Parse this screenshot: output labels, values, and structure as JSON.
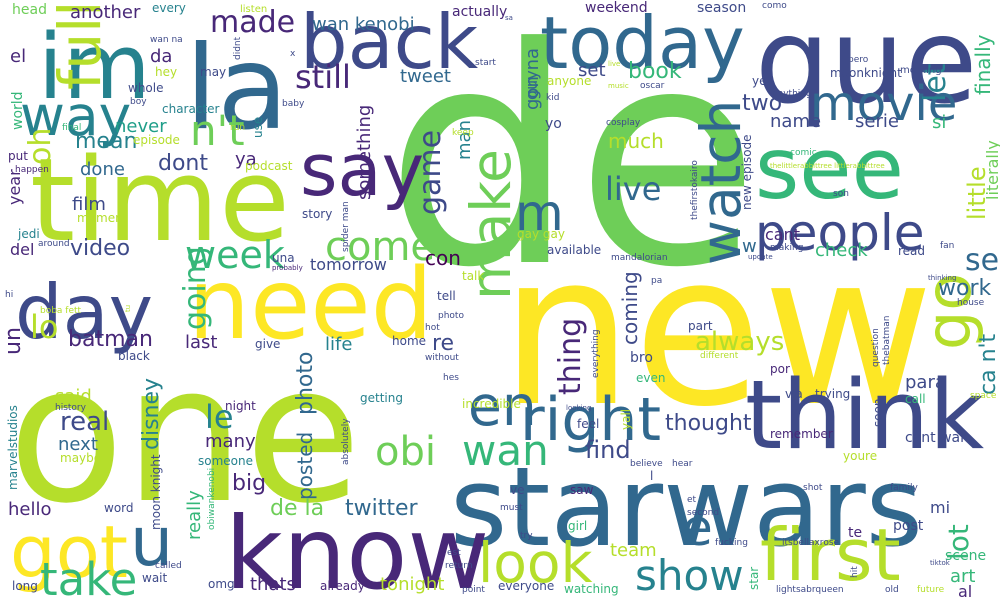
{
  "colors": {
    "background": "#ffffff",
    "palette": [
      "#440154",
      "#482878",
      "#3e4a89",
      "#31688e",
      "#26828e",
      "#1f9e89",
      "#35b779",
      "#6ece58",
      "#b5de2b",
      "#fde725"
    ]
  },
  "words": [
    {
      "text": "de",
      "color": "#6ece58"
    },
    {
      "text": "new",
      "color": "#fde725"
    },
    {
      "text": "one",
      "color": "#b5de2b"
    },
    {
      "text": "que",
      "color": "#3e4a89"
    },
    {
      "text": "la",
      "color": "#31688e"
    },
    {
      "text": "im",
      "color": "#26828e"
    },
    {
      "text": "time",
      "color": "#b5de2b"
    },
    {
      "text": "starwars",
      "color": "#31688e"
    },
    {
      "text": "know",
      "color": "#482878"
    },
    {
      "text": "need",
      "color": "#fde725"
    },
    {
      "text": "think",
      "color": "#3e4a89"
    },
    {
      "text": "back",
      "color": "#3e4a89"
    },
    {
      "text": "today",
      "color": "#31688e"
    },
    {
      "text": "see",
      "color": "#35b779"
    },
    {
      "text": "day",
      "color": "#3e4a89"
    },
    {
      "text": "say",
      "color": "#482878"
    },
    {
      "text": "right",
      "color": "#31688e"
    },
    {
      "text": "first",
      "color": "#b5de2b"
    },
    {
      "text": "got",
      "color": "#fde725"
    },
    {
      "text": "people",
      "color": "#3e4a89"
    },
    {
      "text": "watch",
      "color": "#31688e"
    },
    {
      "text": "movie",
      "color": "#31688e"
    },
    {
      "text": "go",
      "color": "#b5de2b"
    },
    {
      "text": "way",
      "color": "#26828e"
    },
    {
      "text": "make",
      "color": "#6ece58"
    },
    {
      "text": "look",
      "color": "#b5de2b"
    },
    {
      "text": "full",
      "color": "#b5de2b"
    },
    {
      "text": "u",
      "color": "#31688e"
    },
    {
      "text": "take",
      "color": "#35b779"
    },
    {
      "text": "show",
      "color": "#26828e"
    },
    {
      "text": "come",
      "color": "#6ece58"
    },
    {
      "text": "en",
      "color": "#31688e"
    },
    {
      "text": "wan",
      "color": "#35b779"
    },
    {
      "text": "obi",
      "color": "#6ece58"
    },
    {
      "text": "m",
      "color": "#31688e"
    },
    {
      "text": "e",
      "color": "#31688e"
    },
    {
      "text": "n't",
      "color": "#6ece58"
    },
    {
      "text": "week",
      "color": "#35b779"
    },
    {
      "text": "still",
      "color": "#482878"
    },
    {
      "text": "live",
      "color": "#31688e"
    },
    {
      "text": "game",
      "color": "#3e4a89"
    },
    {
      "text": "going",
      "color": "#35b779"
    },
    {
      "text": "made",
      "color": "#482878"
    },
    {
      "text": "thing",
      "color": "#482878"
    },
    {
      "text": "let",
      "color": "#26828e"
    },
    {
      "text": "lot",
      "color": "#35b779"
    },
    {
      "text": "se",
      "color": "#31688e"
    },
    {
      "text": "ca n't",
      "color": "#26828e"
    },
    {
      "text": "little",
      "color": "#b5de2b"
    },
    {
      "text": "finally",
      "color": "#35b779"
    },
    {
      "text": "literally",
      "color": "#6ece58"
    },
    {
      "text": "work",
      "color": "#31688e"
    },
    {
      "text": "oh",
      "color": "#b5de2b"
    },
    {
      "text": "lo",
      "color": "#b5de2b"
    },
    {
      "text": "un",
      "color": "#482878"
    },
    {
      "text": "batman",
      "color": "#482878"
    },
    {
      "text": "video",
      "color": "#3e4a89"
    },
    {
      "text": "le",
      "color": "#26828e"
    },
    {
      "text": "real",
      "color": "#3e4a89"
    },
    {
      "text": "disney",
      "color": "#26828e"
    },
    {
      "text": "photo",
      "color": "#31688e"
    },
    {
      "text": "posted",
      "color": "#31688e"
    },
    {
      "text": "twitter",
      "color": "#31688e"
    },
    {
      "text": "de la",
      "color": "#6ece58"
    },
    {
      "text": "always",
      "color": "#b5de2b"
    },
    {
      "text": "coming",
      "color": "#3e4a89"
    },
    {
      "text": "thought",
      "color": "#3e4a89"
    },
    {
      "text": "find",
      "color": "#3e4a89"
    },
    {
      "text": "book",
      "color": "#35b779"
    },
    {
      "text": "mean",
      "color": "#26828e"
    },
    {
      "text": "dont",
      "color": "#3e4a89"
    },
    {
      "text": "two",
      "color": "#3e4a89"
    },
    {
      "text": "name",
      "color": "#3e4a89"
    },
    {
      "text": "serie",
      "color": "#3e4a89"
    },
    {
      "text": "never",
      "color": "#1f9e89"
    },
    {
      "text": "si",
      "color": "#35b779"
    },
    {
      "text": "set",
      "color": "#3e4a89"
    },
    {
      "text": "much",
      "color": "#b5de2b"
    },
    {
      "text": "tweet",
      "color": "#31688e"
    },
    {
      "text": "another",
      "color": "#482878"
    },
    {
      "text": "wan kenobi",
      "color": "#31688e"
    },
    {
      "text": "gon na",
      "color": "#31688e"
    },
    {
      "text": "guy",
      "color": "#31688e"
    },
    {
      "text": "something",
      "color": "#482878"
    },
    {
      "text": "man",
      "color": "#26828e"
    },
    {
      "text": "con",
      "color": "#440154"
    },
    {
      "text": "re",
      "color": "#3e4a89"
    },
    {
      "text": "ya",
      "color": "#482878"
    },
    {
      "text": "done",
      "color": "#31688e"
    },
    {
      "text": "film",
      "color": "#3e4a89"
    },
    {
      "text": "year",
      "color": "#482878"
    },
    {
      "text": "next",
      "color": "#31688e"
    },
    {
      "text": "said",
      "color": "#b5de2b"
    },
    {
      "text": "last",
      "color": "#482878"
    },
    {
      "text": "life",
      "color": "#26828e"
    },
    {
      "text": "many",
      "color": "#482878"
    },
    {
      "text": "big",
      "color": "#482878"
    },
    {
      "text": "really",
      "color": "#35b779"
    },
    {
      "text": "thats",
      "color": "#482878"
    },
    {
      "text": "tonight",
      "color": "#b5de2b"
    },
    {
      "text": "hello",
      "color": "#482878"
    },
    {
      "text": "check",
      "color": "#35b779"
    },
    {
      "text": "para",
      "color": "#3e4a89"
    },
    {
      "text": "art",
      "color": "#35b779"
    },
    {
      "text": "cant wait",
      "color": "#3e4a89"
    },
    {
      "text": "w",
      "color": "#31688e"
    },
    {
      "text": "cant",
      "color": "#482878"
    },
    {
      "text": "el",
      "color": "#482878"
    },
    {
      "text": "da",
      "color": "#482878"
    },
    {
      "text": "world",
      "color": "#35b779"
    },
    {
      "text": "del",
      "color": "#482878"
    },
    {
      "text": "tomorrow",
      "color": "#3e4a89"
    },
    {
      "text": "team",
      "color": "#b5de2b"
    },
    {
      "text": "mi",
      "color": "#3e4a89"
    },
    {
      "text": "post",
      "color": "#3e4a89"
    },
    {
      "text": "te",
      "color": "#482878"
    },
    {
      "text": "scene",
      "color": "#35b779"
    },
    {
      "text": "al",
      "color": "#482878"
    },
    {
      "text": "weekend",
      "color": "#482878"
    },
    {
      "text": "actually",
      "color": "#482878"
    },
    {
      "text": "every",
      "color": "#26828e"
    },
    {
      "text": "head",
      "color": "#6ece58"
    },
    {
      "text": "listen",
      "color": "#b5de2b"
    },
    {
      "text": "season",
      "color": "#3e4a89"
    },
    {
      "text": "como",
      "color": "#3e4a89"
    },
    {
      "text": "moonknight",
      "color": "#3e4a89"
    },
    {
      "text": "anyone",
      "color": "#b5de2b"
    },
    {
      "text": "yet",
      "color": "#3e4a89"
    },
    {
      "text": "anything",
      "color": "#3e4a89"
    },
    {
      "text": "morning",
      "color": "#3e4a89"
    },
    {
      "text": "pero",
      "color": "#3e4a89"
    },
    {
      "text": "hey",
      "color": "#b5de2b"
    },
    {
      "text": "whole",
      "color": "#3e4a89"
    },
    {
      "text": "boy",
      "color": "#3e4a89"
    },
    {
      "text": "character",
      "color": "#26828e"
    },
    {
      "text": "episode",
      "color": "#b5de2b"
    },
    {
      "text": "final",
      "color": "#35b779"
    },
    {
      "text": "run",
      "color": "#b5de2b"
    },
    {
      "text": "use",
      "color": "#26828e"
    },
    {
      "text": "podcast",
      "color": "#b5de2b"
    },
    {
      "text": "put",
      "color": "#482878"
    },
    {
      "text": "happen",
      "color": "#482878"
    },
    {
      "text": "jedi",
      "color": "#26828e"
    },
    {
      "text": "moment",
      "color": "#b5de2b"
    },
    {
      "text": "story",
      "color": "#3e4a89"
    },
    {
      "text": "spider man",
      "color": "#3e4a89"
    },
    {
      "text": "around",
      "color": "#3e4a89"
    },
    {
      "text": "hi",
      "color": "#3e4a89"
    },
    {
      "text": "boba fett",
      "color": "#b5de2b"
    },
    {
      "text": "una",
      "color": "#3e4a89"
    },
    {
      "text": "probably",
      "color": "#482878"
    },
    {
      "text": "talk",
      "color": "#b5de2b"
    },
    {
      "text": "tell",
      "color": "#3e4a89"
    },
    {
      "text": "photo",
      "color": "#3e4a89"
    },
    {
      "text": "hot",
      "color": "#3e4a89"
    },
    {
      "text": "home",
      "color": "#3e4a89"
    },
    {
      "text": "give",
      "color": "#3e4a89"
    },
    {
      "text": "black",
      "color": "#3e4a89"
    },
    {
      "text": "without",
      "color": "#3e4a89"
    },
    {
      "text": "hes",
      "color": "#3e4a89"
    },
    {
      "text": "night",
      "color": "#482878"
    },
    {
      "text": "someone",
      "color": "#26828e"
    },
    {
      "text": "history",
      "color": "#3e4a89"
    },
    {
      "text": "maybe",
      "color": "#b5de2b"
    },
    {
      "text": "marvelstudios",
      "color": "#26828e"
    },
    {
      "text": "getting",
      "color": "#26828e"
    },
    {
      "text": "incredible",
      "color": "#b5de2b"
    },
    {
      "text": "absolutely",
      "color": "#3e4a89"
    },
    {
      "text": "word",
      "color": "#3e4a89"
    },
    {
      "text": "moon knight",
      "color": "#3e4a89"
    },
    {
      "text": "obiwankenobi",
      "color": "#35b779"
    },
    {
      "text": "long",
      "color": "#3e4a89"
    },
    {
      "text": "called",
      "color": "#3e4a89"
    },
    {
      "text": "wait",
      "color": "#3e4a89"
    },
    {
      "text": "omg",
      "color": "#3e4a89"
    },
    {
      "text": "already",
      "color": "#482878"
    },
    {
      "text": "est",
      "color": "#3e4a89"
    },
    {
      "text": "return",
      "color": "#3e4a89"
    },
    {
      "text": "point",
      "color": "#3e4a89"
    },
    {
      "text": "everyone",
      "color": "#3e4a89"
    },
    {
      "text": "watching",
      "color": "#35b779"
    },
    {
      "text": "try",
      "color": "#3e4a89"
    },
    {
      "text": "must",
      "color": "#3e4a89"
    },
    {
      "text": "ve",
      "color": "#3e4a89"
    },
    {
      "text": "saw",
      "color": "#482878"
    },
    {
      "text": "girl",
      "color": "#35b779"
    },
    {
      "text": "feel",
      "color": "#3e4a89"
    },
    {
      "text": "yall",
      "color": "#b5de2b"
    },
    {
      "text": "believe",
      "color": "#3e4a89"
    },
    {
      "text": "hear",
      "color": "#3e4a89"
    },
    {
      "text": "l",
      "color": "#3e4a89"
    },
    {
      "text": "et",
      "color": "#3e4a89"
    },
    {
      "text": "second",
      "color": "#3e4a89"
    },
    {
      "text": "fucking",
      "color": "#3e4a89"
    },
    {
      "text": "star",
      "color": "#35b779"
    },
    {
      "text": "itsbellaxrose",
      "color": "#3e4a89"
    },
    {
      "text": "lightsabrqueen",
      "color": "#3e4a89"
    },
    {
      "text": "hit",
      "color": "#3e4a89"
    },
    {
      "text": "old",
      "color": "#3e4a89"
    },
    {
      "text": "future",
      "color": "#b5de2b"
    },
    {
      "text": "tiktok",
      "color": "#3e4a89"
    },
    {
      "text": "family",
      "color": "#3e4a89"
    },
    {
      "text": "shot",
      "color": "#3e4a89"
    },
    {
      "text": "youre",
      "color": "#b5de2b"
    },
    {
      "text": "soon",
      "color": "#3e4a89"
    },
    {
      "text": "question",
      "color": "#3e4a89"
    },
    {
      "text": "remember",
      "color": "#482878"
    },
    {
      "text": "por",
      "color": "#482878"
    },
    {
      "text": "via",
      "color": "#3e4a89"
    },
    {
      "text": "trying",
      "color": "#3e4a89"
    },
    {
      "text": "call",
      "color": "#35b779"
    },
    {
      "text": "space",
      "color": "#b5de2b"
    },
    {
      "text": "thebatman",
      "color": "#3e4a89"
    },
    {
      "text": "house",
      "color": "#3e4a89"
    },
    {
      "text": "thinking",
      "color": "#3e4a89"
    },
    {
      "text": "fan",
      "color": "#3e4a89"
    },
    {
      "text": "read",
      "color": "#3e4a89"
    },
    {
      "text": "making",
      "color": "#3e4a89"
    },
    {
      "text": "update",
      "color": "#3e4a89"
    },
    {
      "text": "son",
      "color": "#3e4a89"
    },
    {
      "text": "comic",
      "color": "#35b779"
    },
    {
      "text": "thelittlerabbittree littlerabbittree",
      "color": "#b5de2b"
    },
    {
      "text": "new episode",
      "color": "#3e4a89"
    },
    {
      "text": "thefirstokairo",
      "color": "#3e4a89"
    },
    {
      "text": "part",
      "color": "#3e4a89"
    },
    {
      "text": "pa",
      "color": "#3e4a89"
    },
    {
      "text": "mandalorian",
      "color": "#3e4a89"
    },
    {
      "text": "available",
      "color": "#3e4a89"
    },
    {
      "text": "gay gay",
      "color": "#b5de2b"
    },
    {
      "text": "cosplay",
      "color": "#3e4a89"
    },
    {
      "text": "kid",
      "color": "#3e4a89"
    },
    {
      "text": "yo",
      "color": "#3e4a89"
    },
    {
      "text": "keep",
      "color": "#b5de2b"
    },
    {
      "text": "oscar",
      "color": "#3e4a89"
    },
    {
      "text": "music",
      "color": "#b5de2b"
    },
    {
      "text": "live",
      "color": "#b5de2b"
    },
    {
      "text": "start",
      "color": "#3e4a89"
    },
    {
      "text": "didnt",
      "color": "#3e4a89"
    },
    {
      "text": "may",
      "color": "#3e4a89"
    },
    {
      "text": "wan na",
      "color": "#3e4a89"
    },
    {
      "text": "baby",
      "color": "#3e4a89"
    },
    {
      "text": "everything",
      "color": "#3e4a89"
    },
    {
      "text": "different",
      "color": "#b5de2b"
    },
    {
      "text": "bro",
      "color": "#3e4a89"
    },
    {
      "text": "even",
      "color": "#35b779"
    },
    {
      "text": "looking",
      "color": "#3e4a89"
    },
    {
      "text": "tu",
      "color": "#b5de2b"
    },
    {
      "text": "x",
      "color": "#3e4a89"
    },
    {
      "text": "sa",
      "color": "#3e4a89"
    }
  ]
}
